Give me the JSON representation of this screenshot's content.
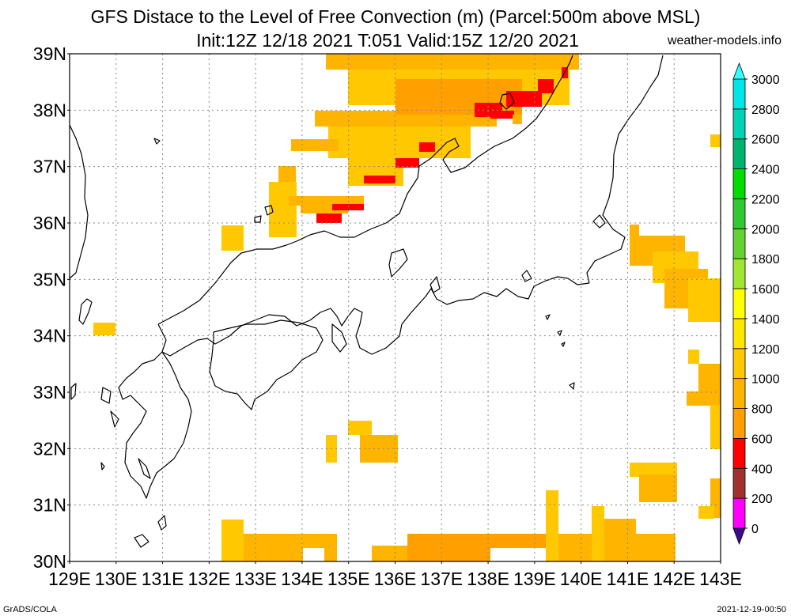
{
  "header": {
    "title": "GFS Distace to the Level of Free Convection (m) (Parcel:500m above MSL)",
    "subtitle": "Init:12Z 12/18 2021 T:051 Valid:15Z 12/20 2021",
    "site": "weather-models.info"
  },
  "footer": {
    "left": "GrADS/COLA",
    "right": "2021-12-19-00:50"
  },
  "map": {
    "lat_labels": [
      "39N",
      "38N",
      "37N",
      "36N",
      "35N",
      "34N",
      "33N",
      "32N",
      "31N",
      "30N"
    ],
    "lon_labels": [
      "129E",
      "130E",
      "131E",
      "132E",
      "133E",
      "134E",
      "135E",
      "136E",
      "137E",
      "138E",
      "139E",
      "140E",
      "141E",
      "142E",
      "143E"
    ],
    "lon_range": [
      129,
      143
    ],
    "lat_range": [
      30,
      39
    ],
    "grid": true
  },
  "colorbar": {
    "levels": [
      "0",
      "200",
      "400",
      "600",
      "800",
      "1000",
      "1200",
      "1400",
      "1600",
      "1800",
      "2000",
      "2200",
      "2400",
      "2600",
      "2800",
      "3000"
    ],
    "colors": [
      "#3c0a8c",
      "#ff00ff",
      "#a0322d",
      "#ff0000",
      "#ffa000",
      "#ffb400",
      "#ffc800",
      "#ffe600",
      "#ffff00",
      "#a0e632",
      "#64d232",
      "#32c832",
      "#00dc00",
      "#00b46e",
      "#00d2b4",
      "#00e6e6",
      "#32ffff"
    ]
  },
  "field_colors": {
    "light": "#ffc800",
    "mid": "#ffb400",
    "dark": "#ffa000",
    "red": "#ff0000"
  }
}
